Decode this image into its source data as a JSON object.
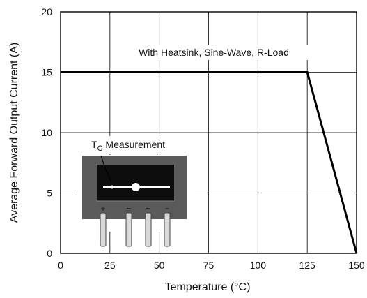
{
  "chart_data": {
    "type": "line",
    "xlabel": "Temperature (°C)",
    "ylabel": "Average Forward Output Current (A)",
    "xlim": [
      0,
      150
    ],
    "ylim": [
      0,
      20
    ],
    "xticks": [
      0,
      25,
      50,
      75,
      100,
      125,
      150
    ],
    "yticks": [
      0,
      5,
      10,
      15,
      20
    ],
    "grid": true,
    "series": [
      {
        "x": [
          0,
          125,
          150
        ],
        "y": [
          15,
          15,
          0
        ]
      }
    ],
    "annotations": {
      "curve_label": "With Heatsink, Sine-Wave, R-Load",
      "tc_label_main": "T",
      "tc_label_sub": "C",
      "tc_label_rest": " Measurement",
      "pin_symbols": [
        "+",
        "~",
        "~",
        "−"
      ]
    },
    "colors": {
      "line": "#000000",
      "grid": "#000000",
      "device_body": "#5a5a5a",
      "device_face": "#0d0d0d",
      "device_mark": "#ffffff",
      "pin": "#d9d9d9"
    }
  }
}
